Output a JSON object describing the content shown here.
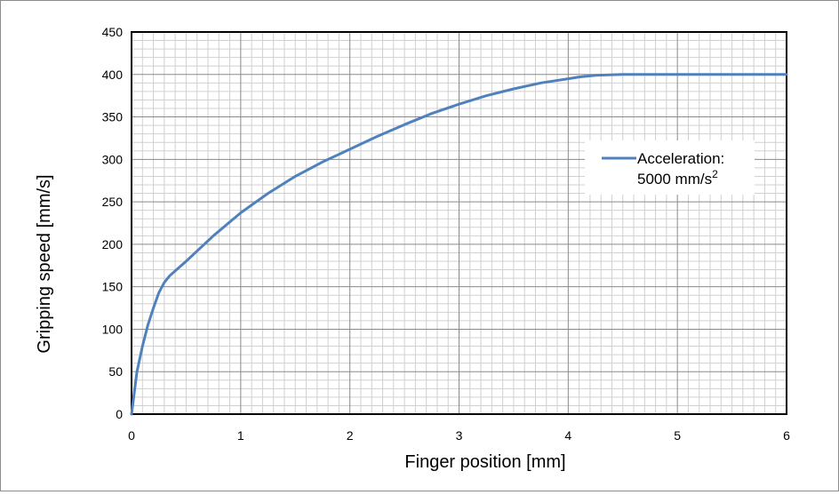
{
  "chart_data": {
    "type": "line",
    "title": "",
    "xlabel": "Finger position [mm]",
    "ylabel": "Gripping speed  [mm/s]",
    "xlim": [
      0,
      6
    ],
    "ylim": [
      0,
      450
    ],
    "x_ticks": [
      "0",
      "1",
      "2",
      "3",
      "4",
      "5",
      "6"
    ],
    "y_ticks": [
      "0",
      "50",
      "100",
      "150",
      "200",
      "250",
      "300",
      "350",
      "400",
      "450"
    ],
    "grid": true,
    "minor_grid": true,
    "legend_position": "right",
    "series": [
      {
        "name": "Acceleration: 5000 mm/s2",
        "color": "#4f81bd",
        "x": [
          0,
          0.05,
          0.1,
          0.15,
          0.2,
          0.25,
          0.3,
          0.35,
          0.5,
          0.75,
          1.0,
          1.25,
          1.5,
          1.75,
          2.0,
          2.25,
          2.5,
          2.75,
          3.0,
          3.25,
          3.5,
          3.75,
          4.0,
          4.1,
          4.25,
          4.5,
          4.75,
          5.0,
          5.5,
          6.0
        ],
        "y": [
          0,
          50,
          80,
          105,
          125,
          143,
          155,
          163,
          180,
          210,
          237,
          260,
          280,
          297,
          312,
          327,
          341,
          354,
          365,
          375,
          383,
          390,
          395,
          397,
          399,
          400,
          400,
          400,
          400,
          400
        ]
      }
    ]
  },
  "legend": {
    "line1": "Acceleration:",
    "line2": "5000 mm/s",
    "superscript": "2"
  }
}
